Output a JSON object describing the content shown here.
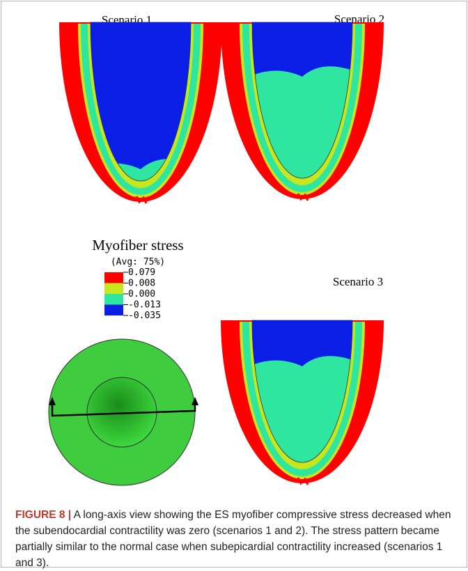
{
  "panels": [
    {
      "title": "Scenario 1"
    },
    {
      "title": "Scenario 2"
    },
    {
      "title": "Scenario 3"
    }
  ],
  "legend": {
    "title": "Myofiber stress",
    "subtitle": "(Avg: 75%)",
    "labels": [
      "0.079",
      "0.008",
      "0.000",
      "-0.013",
      "-0.035"
    ],
    "colors": [
      "#ff0000",
      "#c8e61e",
      "#2ee6a0",
      "#0a1ee6"
    ]
  },
  "caption": {
    "label": "FIGURE 8 |",
    "text": "A long-axis view showing the ES myofiber compressive stress decreased when the subendocardial contractility was zero (scenarios 1 and 2). The stress pattern became partially similar to the normal case when subepicardial contractility increased (scenarios 1 and 3)."
  }
}
